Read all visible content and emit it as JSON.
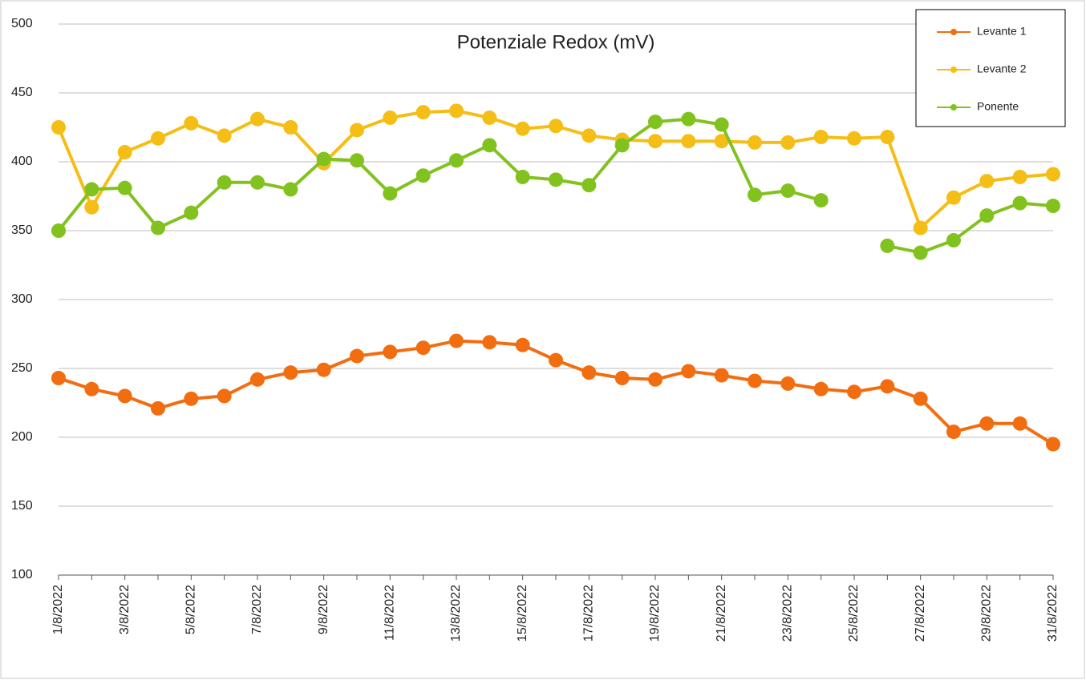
{
  "chart_data": {
    "type": "line",
    "title": "Potenziale Redox  (mV)",
    "categories": [
      "1/8/2022",
      null,
      "3/8/2022",
      null,
      "5/8/2022",
      null,
      "7/8/2022",
      null,
      "9/8/2022",
      null,
      "11/8/2022",
      null,
      "13/8/2022",
      null,
      "15/8/2022",
      null,
      "17/8/2022",
      null,
      "19/8/2022",
      null,
      "21/8/2022",
      null,
      "23/8/2022",
      null,
      "25/8/2022",
      null,
      "27/8/2022",
      null,
      "29/8/2022",
      null,
      "31/8/2022"
    ],
    "series": [
      {
        "name": "Levante 1",
        "color": "#f26d10",
        "values": [
          243,
          235,
          230,
          221,
          228,
          230,
          242,
          247,
          249,
          259,
          262,
          265,
          270,
          269,
          267,
          256,
          247,
          243,
          242,
          248,
          245,
          241,
          239,
          235,
          233,
          237,
          228,
          204,
          210,
          210,
          195
        ]
      },
      {
        "name": "Levante 2",
        "color": "#f5be16",
        "values": [
          425,
          367,
          407,
          417,
          428,
          419,
          431,
          425,
          399,
          423,
          432,
          436,
          437,
          432,
          424,
          426,
          419,
          416,
          415,
          415,
          415,
          414,
          414,
          418,
          417,
          418,
          352,
          374,
          386,
          389,
          391
        ]
      },
      {
        "name": "Ponente",
        "color": "#82c21f",
        "values": [
          350,
          380,
          381,
          352,
          363,
          385,
          385,
          380,
          402,
          401,
          377,
          390,
          401,
          412,
          389,
          387,
          383,
          412,
          429,
          431,
          427,
          376,
          379,
          372,
          null,
          339,
          334,
          343,
          361,
          370,
          368
        ]
      }
    ],
    "ylim": [
      100,
      500
    ],
    "yticks": [
      100,
      150,
      200,
      250,
      300,
      350,
      400,
      450,
      500
    ],
    "grid": true,
    "legend": "top-right"
  }
}
